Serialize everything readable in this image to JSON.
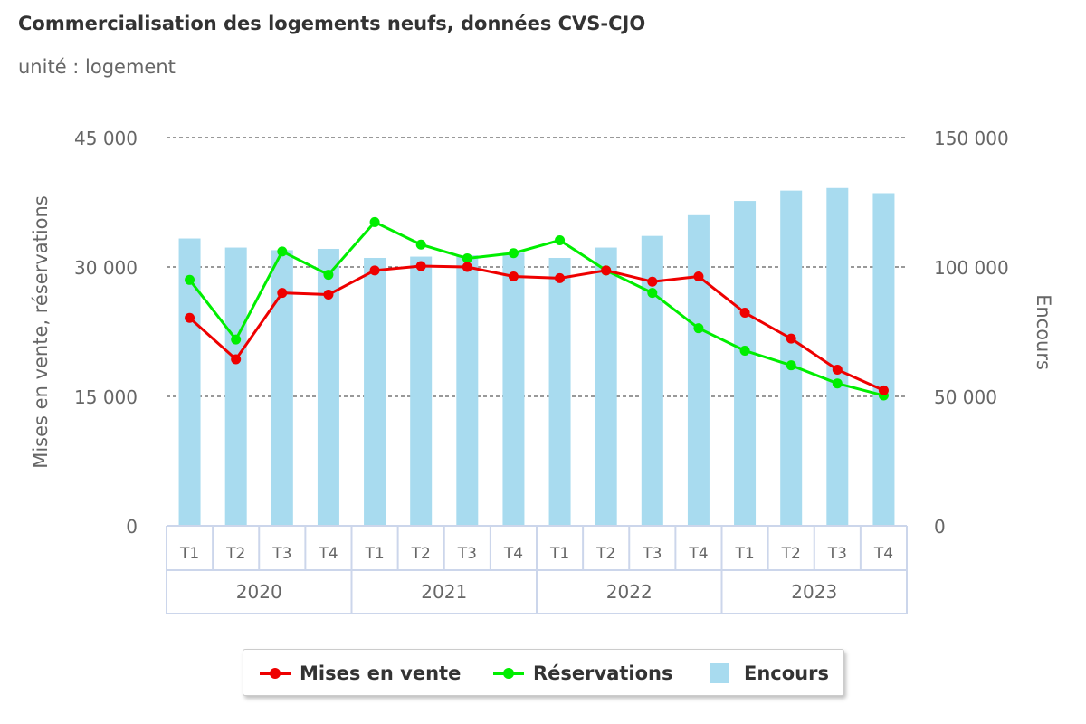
{
  "title": "Commercialisation des logements neufs, données CVS-CJO",
  "subtitle": "unité : logement",
  "colors": {
    "mises": "#ee0000",
    "reservations": "#00ee00",
    "encours": "#a8dbef"
  },
  "chart_data": {
    "type": "bar",
    "categories": [
      "T1",
      "T2",
      "T3",
      "T4",
      "T1",
      "T2",
      "T3",
      "T4",
      "T1",
      "T2",
      "T3",
      "T4",
      "T1",
      "T2",
      "T3",
      "T4"
    ],
    "groups": [
      "2020",
      "2021",
      "2022",
      "2023"
    ],
    "y_left": {
      "label": "Mises en vente, réservations",
      "ylim": [
        0,
        45000
      ],
      "ticks": [
        "0",
        "15 000",
        "30 000",
        "45 000"
      ]
    },
    "y_right": {
      "label": "Encours",
      "ylim": [
        0,
        150000
      ],
      "ticks": [
        "0",
        "50 000",
        "100 000",
        "150 000"
      ]
    },
    "series": [
      {
        "name": "Mises en vente",
        "type": "line",
        "axis": "left",
        "values": [
          24100,
          19300,
          27000,
          26800,
          29600,
          30100,
          30000,
          28900,
          28700,
          29600,
          28300,
          28900,
          24700,
          21700,
          18100,
          15700
        ]
      },
      {
        "name": "Réservations",
        "type": "line",
        "axis": "left",
        "values": [
          28500,
          21600,
          31800,
          29100,
          35200,
          32600,
          31000,
          31600,
          33100,
          29600,
          27000,
          22900,
          20300,
          18600,
          16500,
          15100
        ]
      },
      {
        "name": "Encours",
        "type": "bar",
        "axis": "right",
        "values": [
          111000,
          107500,
          106500,
          107000,
          103500,
          104000,
          104500,
          105500,
          103500,
          107500,
          112000,
          120000,
          125500,
          129500,
          130500,
          128500
        ]
      }
    ],
    "grid": true,
    "legend": "bottom-center"
  }
}
